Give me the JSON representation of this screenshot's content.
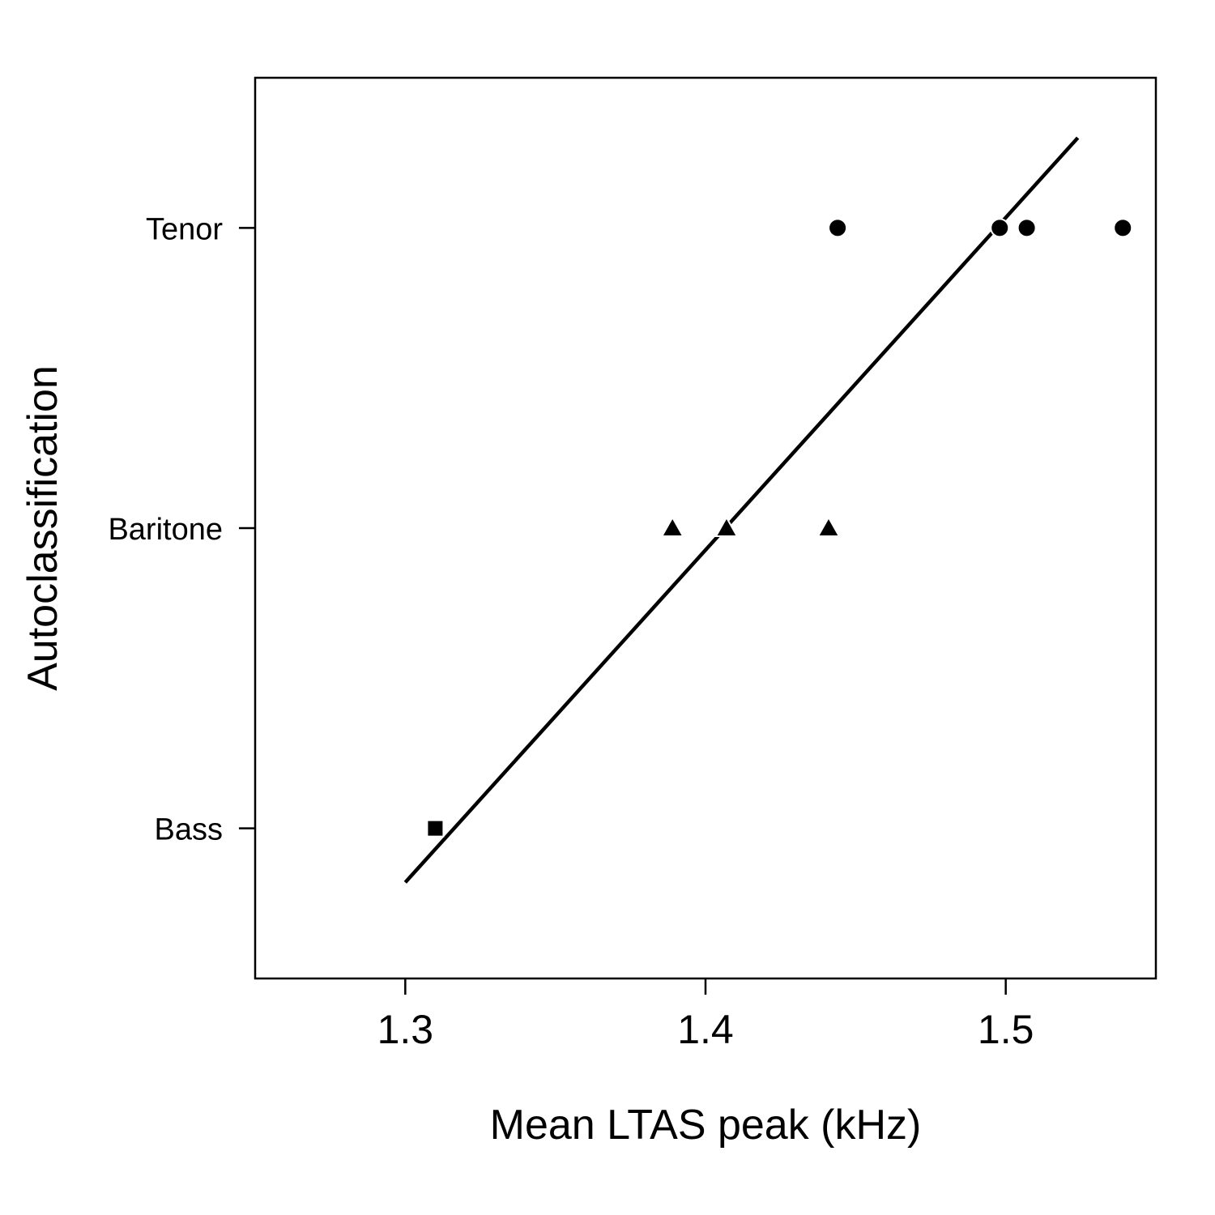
{
  "chart_data": {
    "type": "scatter",
    "title": "",
    "xlabel": "Mean LTAS peak (kHz)",
    "ylabel": "Autoclassification",
    "xlim": [
      1.25,
      1.55
    ],
    "ylim": [
      0.5,
      3.5
    ],
    "x_ticks": [
      {
        "value": 1.3,
        "label": "1.3"
      },
      {
        "value": 1.4,
        "label": "1.4"
      },
      {
        "value": 1.5,
        "label": "1.5"
      }
    ],
    "y_ticks": [
      {
        "value": 1,
        "label": "Bass"
      },
      {
        "value": 2,
        "label": "Baritone"
      },
      {
        "value": 3,
        "label": "Tenor"
      }
    ],
    "grid": false,
    "legend": "none",
    "series": [
      {
        "marker": "square",
        "points": [
          {
            "x": 1.31,
            "y": 1
          }
        ]
      },
      {
        "marker": "triangle",
        "points": [
          {
            "x": 1.389,
            "y": 2
          },
          {
            "x": 1.407,
            "y": 2
          },
          {
            "x": 1.441,
            "y": 2
          }
        ]
      },
      {
        "marker": "circle",
        "points": [
          {
            "x": 1.444,
            "y": 3
          },
          {
            "x": 1.498,
            "y": 3
          },
          {
            "x": 1.507,
            "y": 3
          },
          {
            "x": 1.539,
            "y": 3
          }
        ]
      }
    ],
    "fit_line": {
      "x": [
        1.3,
        1.524
      ],
      "y": [
        0.82,
        3.3
      ]
    },
    "colors": {
      "marks": "#000000",
      "axes": "#000000",
      "background": "#ffffff"
    }
  }
}
